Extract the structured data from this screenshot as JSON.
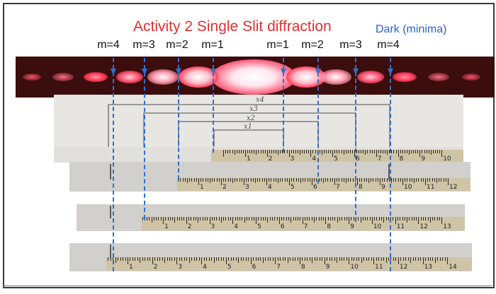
{
  "slide": {
    "title": "Activity 2 Single Slit diffraction",
    "legend": "Dark (minima)",
    "labels": [
      "m=4",
      "m=3",
      "m=2",
      "m=1",
      "m=1",
      "m=2",
      "m=3",
      "m=4"
    ]
  },
  "notes": {
    "x4": "x4",
    "x3": "x3",
    "x2": "x2",
    "x1": "x1"
  },
  "rulers": {
    "strip1": [
      "1",
      "2",
      "3",
      "4",
      "5",
      "6",
      "7",
      "8",
      "9",
      "10"
    ],
    "strip2": [
      "1",
      "2",
      "3",
      "4",
      "5",
      "6",
      "7",
      "8",
      "9",
      "10",
      "11",
      "12"
    ],
    "strip3": [
      "1",
      "2",
      "3",
      "4",
      "5",
      "6",
      "7",
      "8",
      "9",
      "10",
      "11",
      "12",
      "13"
    ],
    "strip4": [
      "1",
      "2",
      "3",
      "4",
      "5",
      "6",
      "7",
      "8",
      "9",
      "10",
      "11",
      "12",
      "13",
      "14"
    ]
  },
  "colors": {
    "title": "#e03030",
    "legend": "#2a64c8",
    "dash": "#2f6fd0",
    "laser": "#ff2a4a"
  }
}
